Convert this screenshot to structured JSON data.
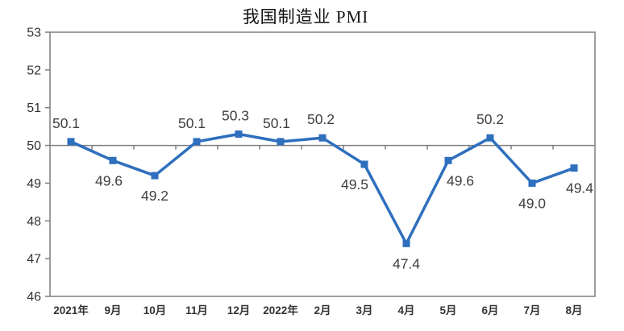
{
  "chart_data": {
    "type": "line",
    "title": "我国制造业 PMI",
    "categories": [
      "2021年",
      "9月",
      "10月",
      "11月",
      "12月",
      "2022年",
      "2月",
      "3月",
      "4月",
      "5月",
      "6月",
      "7月",
      "8月"
    ],
    "values": [
      50.1,
      49.6,
      49.2,
      50.1,
      50.3,
      50.1,
      50.2,
      49.5,
      47.4,
      49.6,
      50.2,
      49.0,
      49.4
    ],
    "data_labels": [
      "50.1",
      "49.6",
      "49.2",
      "50.1",
      "50.3",
      "50.1",
      "50.2",
      "49.5",
      "47.4",
      "49.6",
      "50.2",
      "49.0",
      "49.4"
    ],
    "ylim": [
      46,
      53
    ],
    "ytick_labels": [
      "46",
      "47",
      "48",
      "49",
      "50",
      "51",
      "52",
      "53"
    ],
    "xlabel": "",
    "ylabel": "",
    "reference_line": 50,
    "grid": false,
    "legend": "none",
    "marker": "square",
    "colors": {
      "line": "#2E6FBE",
      "marker": "#2E6FBE",
      "axis": "#7F7F7F",
      "label_text": "#3F3F3F",
      "tick_text": "#333333",
      "title_text": "#111111",
      "background": "#FFFFFF"
    },
    "layout": {
      "legend_position": "none",
      "label_rule": "above-if-value-ge-reference-else-below",
      "label_dx": [
        -6,
        -5,
        0,
        -6,
        -4,
        -5,
        -2,
        -12,
        0,
        15,
        0,
        0,
        7
      ],
      "top_tick_label_clipped": true
    }
  }
}
